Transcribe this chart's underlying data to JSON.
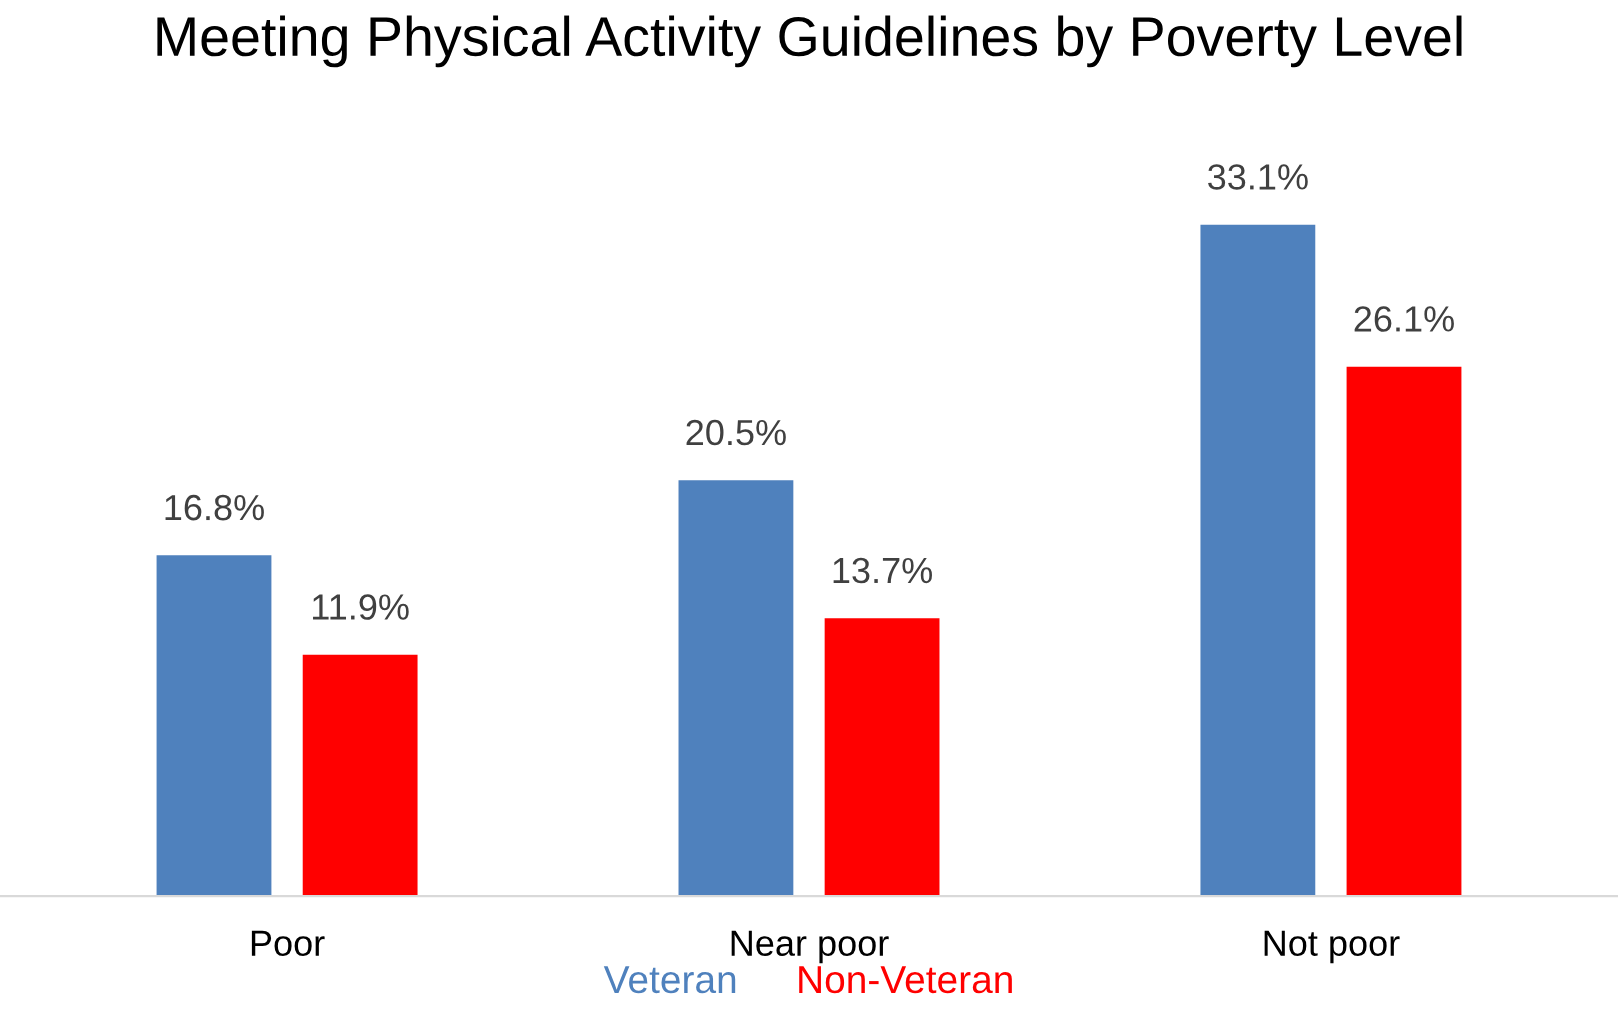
{
  "chart_data": {
    "type": "bar",
    "title": "Meeting Physical Activity Guidelines by Poverty Level",
    "categories": [
      "Poor",
      "Near poor",
      "Not poor"
    ],
    "series": [
      {
        "name": "Veteran",
        "color": "#4f81bd",
        "values": [
          16.8,
          20.5,
          33.1
        ],
        "value_labels": [
          "16.8%",
          "20.5%",
          "33.1%"
        ]
      },
      {
        "name": "Non-Veteran",
        "color": "#ff0000",
        "values": [
          11.9,
          13.7,
          26.1
        ],
        "value_labels": [
          "11.9%",
          "13.7%",
          "26.1%"
        ]
      }
    ],
    "legend": "bottom"
  }
}
